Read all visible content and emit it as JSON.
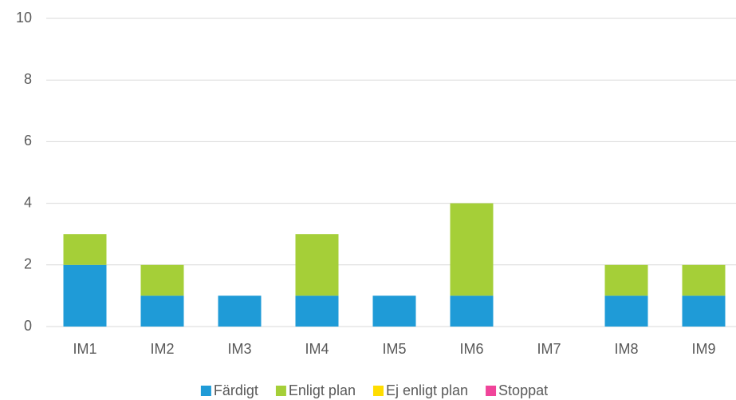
{
  "chart_data": {
    "type": "stacked_bar",
    "categories": [
      "IM1",
      "IM2",
      "IM3",
      "IM4",
      "IM5",
      "IM6",
      "IM7",
      "IM8",
      "IM9"
    ],
    "series": [
      {
        "name": "Färdigt",
        "color": "#1f9bd7",
        "values": [
          2,
          1,
          1,
          1,
          1,
          1,
          0,
          1,
          1
        ]
      },
      {
        "name": "Enligt plan",
        "color": "#a5cf38",
        "values": [
          1,
          1,
          0,
          2,
          0,
          3,
          0,
          1,
          1
        ]
      },
      {
        "name": "Ej enligt plan",
        "color": "#ffdd00",
        "values": [
          0,
          0,
          0,
          0,
          0,
          0,
          0,
          0,
          0
        ]
      },
      {
        "name": "Stoppat",
        "color": "#f0449a",
        "values": [
          0,
          0,
          0,
          0,
          0,
          0,
          0,
          0,
          0
        ]
      }
    ],
    "ylim": [
      0,
      10
    ],
    "yticks": [
      0,
      2,
      4,
      6,
      8,
      10
    ],
    "grid": true,
    "legend": "bottom"
  }
}
